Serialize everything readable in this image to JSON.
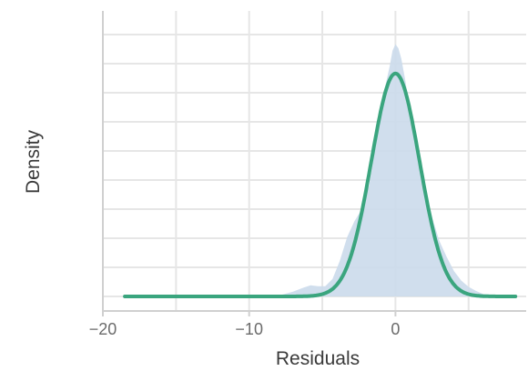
{
  "chart_data": {
    "type": "area",
    "title": "",
    "xlabel": "Residuals",
    "ylabel": "Density",
    "xlim": [
      -20,
      9
    ],
    "ylim": [
      0,
      0.36
    ],
    "x_ticks": [
      -20,
      -10,
      0
    ],
    "x_tick_labels": [
      "−20",
      "−10",
      "0"
    ],
    "y_tick_labels_shown": false,
    "grid": true,
    "legend": "none",
    "colors": {
      "empirical_fill": "#cbdaeb",
      "normal_line": "#3aa57e",
      "grid": "#e6e6e6",
      "axis": "#d0d0d0"
    },
    "series": [
      {
        "kind": "empirical-density-area",
        "x": [
          -18.5,
          -10,
          -8,
          -7,
          -6.3,
          -5.8,
          -5.3,
          -4.8,
          -4.3,
          -3.8,
          -3.3,
          -2.8,
          -2.3,
          -1.8,
          -1.4,
          -1.0,
          -0.7,
          -0.4,
          -0.2,
          0.0,
          0.2,
          0.4,
          0.7,
          1.0,
          1.5,
          2.0,
          2.5,
          3.0,
          3.5,
          4.0,
          4.5,
          5.0,
          5.5,
          6.0,
          7.0,
          8.2
        ],
        "y": [
          0.0,
          0.0,
          0.001,
          0.006,
          0.011,
          0.014,
          0.013,
          0.013,
          0.022,
          0.045,
          0.075,
          0.095,
          0.11,
          0.14,
          0.185,
          0.23,
          0.265,
          0.29,
          0.31,
          0.318,
          0.313,
          0.3,
          0.27,
          0.23,
          0.18,
          0.14,
          0.1,
          0.07,
          0.05,
          0.032,
          0.02,
          0.012,
          0.007,
          0.003,
          0.001,
          0.0
        ]
      },
      {
        "kind": "normal-density-line",
        "mean": 0.0,
        "sd": 1.65,
        "x_range": [
          -18.5,
          8.2
        ]
      }
    ]
  }
}
